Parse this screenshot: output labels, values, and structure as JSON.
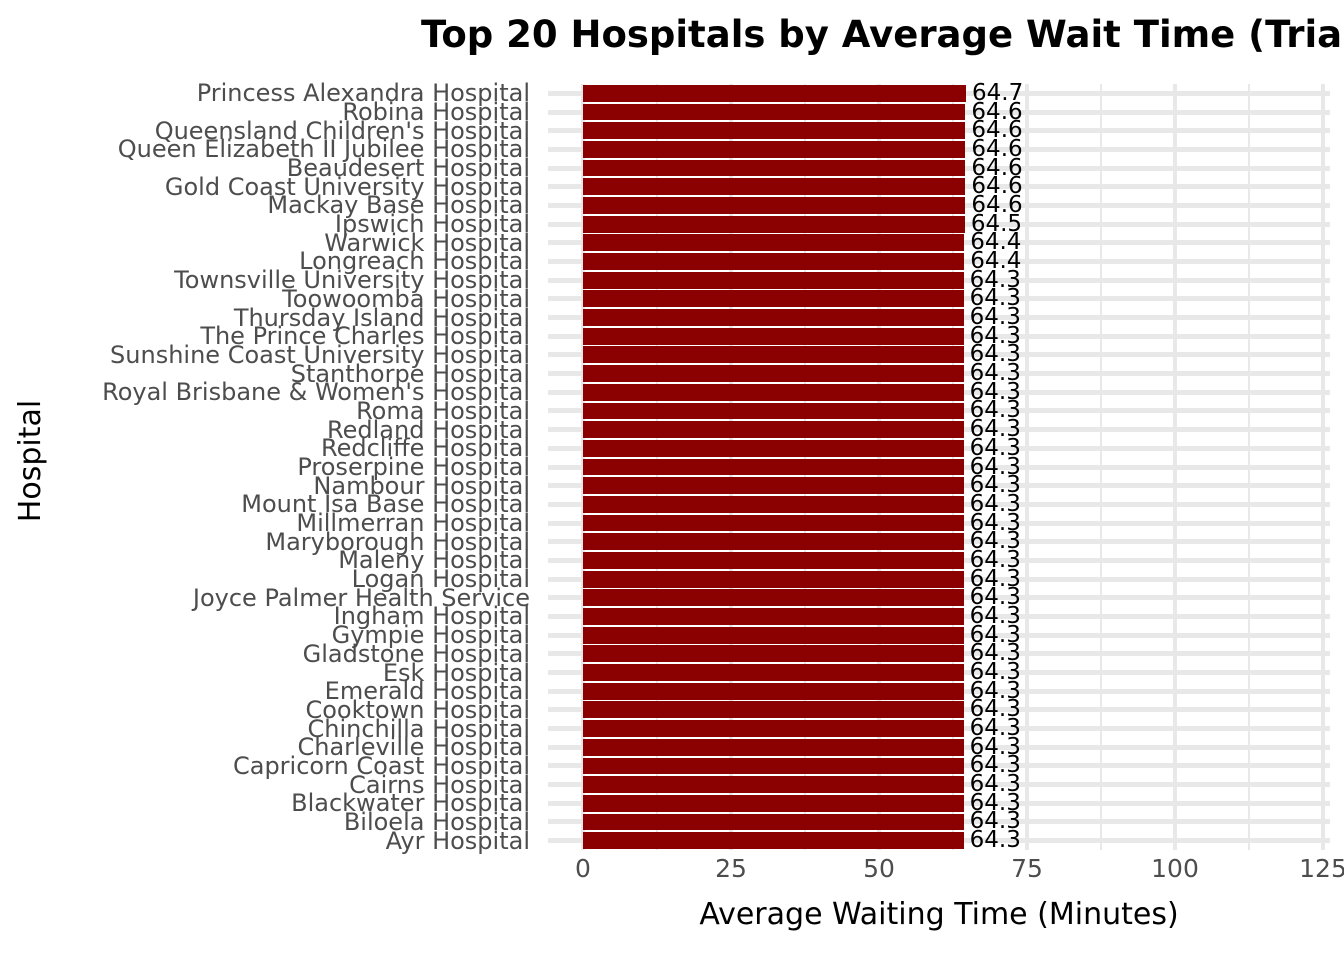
{
  "chart_data": {
    "type": "bar",
    "orientation": "horizontal",
    "title": "Top 20 Hospitals by Average Wait Time (Tria",
    "xlabel": "Average Waiting Time (Minutes)",
    "ylabel": "Hospital",
    "xlim": [
      0,
      131
    ],
    "x_ticks": [
      0,
      25,
      50,
      75,
      100,
      125
    ],
    "x_tick_labels": [
      "0",
      "25",
      "50",
      "75",
      "100",
      "125"
    ],
    "grid": true,
    "legend": "none",
    "bar_color": "#8b0000",
    "grid_color": "#e8e8e8",
    "axis_text_color": "#4d4d4d",
    "categories": [
      "Princess Alexandra Hospital",
      "Robina Hospital",
      "Queensland Children's Hospital",
      "Queen Elizabeth II Jubilee Hospital",
      "Beaudesert Hospital",
      "Gold Coast University Hospital",
      "Mackay Base Hospital",
      "Ipswich Hospital",
      "Warwick Hospital",
      "Longreach Hospital",
      "Townsville University Hospital",
      "Toowoomba Hospital",
      "Thursday Island Hospital",
      "The Prince Charles Hospital",
      "Sunshine Coast University Hospital",
      "Stanthorpe Hospital",
      "Royal Brisbane & Women's Hospital",
      "Roma Hospital",
      "Redland Hospital",
      "Redcliffe Hospital",
      "Proserpine Hospital",
      "Nambour Hospital",
      "Mount Isa Base Hospital",
      "Millmerran Hospital",
      "Maryborough Hospital",
      "Maleny Hospital",
      "Logan Hospital",
      "Joyce Palmer Health Service",
      "Ingham Hospital",
      "Gympie Hospital",
      "Gladstone Hospital",
      "Esk Hospital",
      "Emerald Hospital",
      "Cooktown Hospital",
      "Chinchilla Hospital",
      "Charleville Hospital",
      "Capricorn Coast Hospital",
      "Cairns Hospital",
      "Blackwater Hospital",
      "Biloela Hospital",
      "Ayr Hospital"
    ],
    "values": [
      64.7,
      64.6,
      64.6,
      64.6,
      64.6,
      64.6,
      64.6,
      64.5,
      64.4,
      64.4,
      64.3,
      64.3,
      64.3,
      64.3,
      64.3,
      64.3,
      64.3,
      64.3,
      64.3,
      64.3,
      64.3,
      64.3,
      64.3,
      64.3,
      64.3,
      64.3,
      64.3,
      64.3,
      64.3,
      64.3,
      64.3,
      64.3,
      64.3,
      64.3,
      64.3,
      64.3,
      64.3,
      64.3,
      64.3,
      64.3,
      64.3
    ],
    "bar_value_labels": [
      "64.7",
      "64.6",
      "64.6",
      "64.6",
      "64.6",
      "64.6",
      "64.6",
      "64.5",
      "64.4",
      "64.4",
      "64.3",
      "64.3",
      "64.3",
      "64.3",
      "64.3",
      "64.3",
      "64.3",
      "64.3",
      "64.3",
      "64.3",
      "64.3",
      "64.3",
      "64.3",
      "64.3",
      "64.3",
      "64.3",
      "64.3",
      "64.3",
      "64.3",
      "64.3",
      "64.3",
      "64.3",
      "64.3",
      "64.3",
      "64.3",
      "64.3",
      "64.3",
      "64.3",
      "64.3",
      "64.3",
      "64.3"
    ]
  }
}
